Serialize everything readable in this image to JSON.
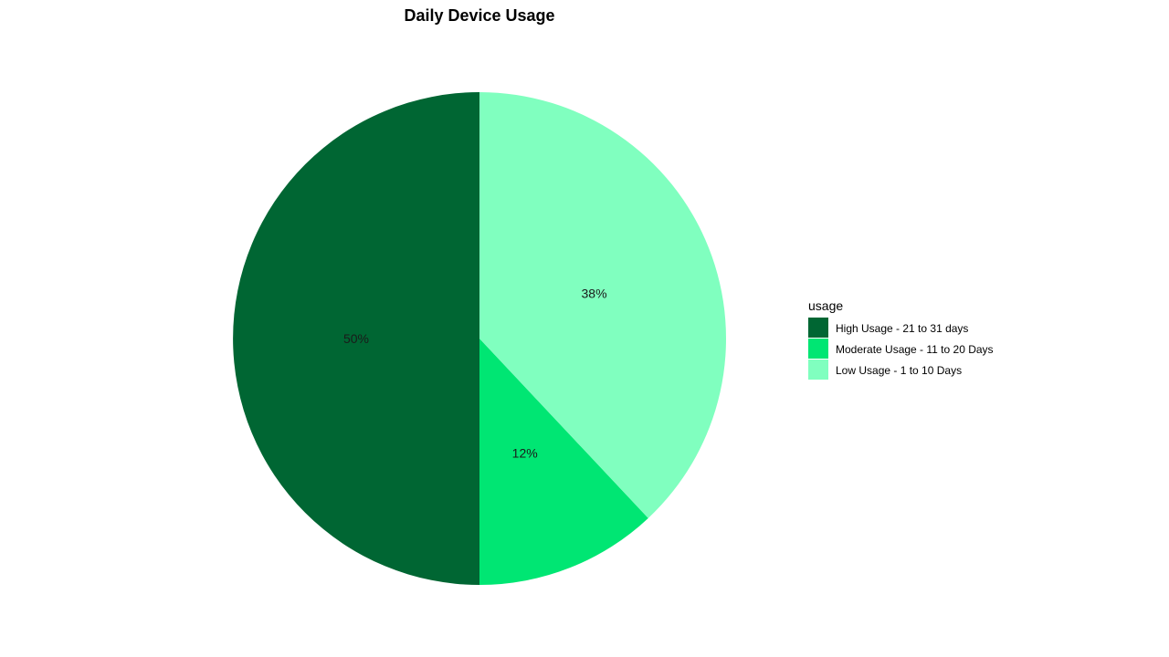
{
  "chart_data": {
    "type": "pie",
    "title": "Daily Device Usage",
    "legend_title": "usage",
    "legend_position": "right",
    "slices": [
      {
        "label": "High Usage - 21 to 31 days",
        "value": 50,
        "display": "50%",
        "color": "#006633"
      },
      {
        "label": "Moderate Usage - 11 to 20 Days",
        "value": 12,
        "display": "12%",
        "color": "#00e673"
      },
      {
        "label": "Low Usage - 1 to 10 Days",
        "value": 38,
        "display": "38%",
        "color": "#80ffbf"
      }
    ]
  }
}
